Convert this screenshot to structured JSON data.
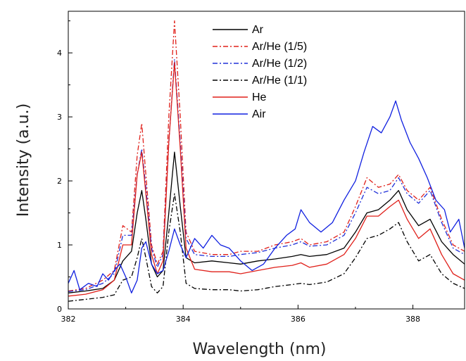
{
  "chart_data": {
    "type": "line",
    "title": "",
    "xlabel": "Wavelength (nm)",
    "ylabel": "Intensity (a.u.)",
    "xlim": [
      382,
      388.9
    ],
    "ylim": [
      0,
      4.65
    ],
    "xticks": [
      382,
      384,
      386,
      388
    ],
    "yticks": [
      0,
      1,
      2,
      3,
      4
    ],
    "x_tick_labels": [
      "382",
      "384",
      "386",
      "388"
    ],
    "y_tick_labels": [
      "0",
      "1",
      "2",
      "3",
      "4"
    ],
    "grid": false,
    "legend_position": "top-center",
    "series": [
      {
        "name": "Ar",
        "color": "#000000",
        "dash": "solid",
        "points": [
          [
            382.0,
            0.25
          ],
          [
            382.3,
            0.28
          ],
          [
            382.6,
            0.32
          ],
          [
            382.8,
            0.45
          ],
          [
            382.95,
            0.75
          ],
          [
            383.1,
            0.9
          ],
          [
            383.2,
            1.5
          ],
          [
            383.28,
            1.85
          ],
          [
            383.35,
            1.4
          ],
          [
            383.45,
            0.7
          ],
          [
            383.55,
            0.5
          ],
          [
            383.65,
            0.6
          ],
          [
            383.75,
            1.5
          ],
          [
            383.85,
            2.45
          ],
          [
            383.95,
            1.6
          ],
          [
            384.05,
            0.8
          ],
          [
            384.2,
            0.72
          ],
          [
            384.5,
            0.75
          ],
          [
            384.8,
            0.72
          ],
          [
            385.0,
            0.7
          ],
          [
            385.3,
            0.75
          ],
          [
            385.6,
            0.78
          ],
          [
            385.9,
            0.82
          ],
          [
            386.05,
            0.85
          ],
          [
            386.2,
            0.82
          ],
          [
            386.5,
            0.85
          ],
          [
            386.8,
            0.95
          ],
          [
            387.0,
            1.2
          ],
          [
            387.2,
            1.5
          ],
          [
            387.4,
            1.55
          ],
          [
            387.6,
            1.7
          ],
          [
            387.75,
            1.85
          ],
          [
            387.9,
            1.55
          ],
          [
            388.1,
            1.3
          ],
          [
            388.3,
            1.4
          ],
          [
            388.5,
            1.05
          ],
          [
            388.7,
            0.85
          ],
          [
            388.9,
            0.7
          ]
        ]
      },
      {
        "name": "Ar/He (1/5)",
        "color": "#e0201a",
        "dash": "dashdot",
        "points": [
          [
            382.0,
            0.28
          ],
          [
            382.3,
            0.32
          ],
          [
            382.6,
            0.45
          ],
          [
            382.8,
            0.6
          ],
          [
            382.95,
            1.3
          ],
          [
            383.1,
            1.2
          ],
          [
            383.2,
            2.4
          ],
          [
            383.28,
            2.9
          ],
          [
            383.35,
            2.1
          ],
          [
            383.45,
            1.0
          ],
          [
            383.55,
            0.7
          ],
          [
            383.65,
            0.9
          ],
          [
            383.75,
            3.0
          ],
          [
            383.85,
            4.5
          ],
          [
            383.95,
            3.0
          ],
          [
            384.05,
            1.2
          ],
          [
            384.2,
            0.9
          ],
          [
            384.5,
            0.85
          ],
          [
            384.8,
            0.85
          ],
          [
            385.0,
            0.9
          ],
          [
            385.3,
            0.9
          ],
          [
            385.6,
            1.0
          ],
          [
            385.9,
            1.05
          ],
          [
            386.05,
            1.1
          ],
          [
            386.2,
            1.0
          ],
          [
            386.5,
            1.05
          ],
          [
            386.8,
            1.2
          ],
          [
            387.0,
            1.6
          ],
          [
            387.2,
            2.05
          ],
          [
            387.4,
            1.9
          ],
          [
            387.6,
            1.95
          ],
          [
            387.75,
            2.1
          ],
          [
            387.9,
            1.85
          ],
          [
            388.1,
            1.7
          ],
          [
            388.3,
            1.9
          ],
          [
            388.5,
            1.4
          ],
          [
            388.7,
            1.0
          ],
          [
            388.9,
            0.9
          ]
        ]
      },
      {
        "name": "Ar/He (1/2)",
        "color": "#2030d8",
        "dash": "dashdot",
        "points": [
          [
            382.0,
            0.27
          ],
          [
            382.3,
            0.3
          ],
          [
            382.6,
            0.4
          ],
          [
            382.8,
            0.55
          ],
          [
            382.95,
            1.15
          ],
          [
            383.1,
            1.15
          ],
          [
            383.2,
            2.1
          ],
          [
            383.28,
            2.5
          ],
          [
            383.35,
            1.9
          ],
          [
            383.45,
            0.95
          ],
          [
            383.55,
            0.65
          ],
          [
            383.65,
            0.85
          ],
          [
            383.75,
            2.6
          ],
          [
            383.85,
            3.9
          ],
          [
            383.95,
            2.6
          ],
          [
            384.05,
            1.1
          ],
          [
            384.2,
            0.85
          ],
          [
            384.5,
            0.82
          ],
          [
            384.8,
            0.82
          ],
          [
            385.0,
            0.85
          ],
          [
            385.3,
            0.88
          ],
          [
            385.6,
            0.95
          ],
          [
            385.9,
            1.0
          ],
          [
            386.05,
            1.05
          ],
          [
            386.2,
            0.98
          ],
          [
            386.5,
            1.0
          ],
          [
            386.8,
            1.15
          ],
          [
            387.0,
            1.5
          ],
          [
            387.2,
            1.9
          ],
          [
            387.4,
            1.8
          ],
          [
            387.6,
            1.85
          ],
          [
            387.75,
            2.05
          ],
          [
            387.9,
            1.8
          ],
          [
            388.1,
            1.65
          ],
          [
            388.3,
            1.85
          ],
          [
            388.5,
            1.35
          ],
          [
            388.7,
            0.95
          ],
          [
            388.9,
            0.85
          ]
        ]
      },
      {
        "name": "Ar/He (1/1)",
        "color": "#000000",
        "dash": "dashdot",
        "points": [
          [
            382.0,
            0.12
          ],
          [
            382.3,
            0.15
          ],
          [
            382.6,
            0.18
          ],
          [
            382.8,
            0.22
          ],
          [
            382.95,
            0.45
          ],
          [
            383.1,
            0.5
          ],
          [
            383.2,
            0.8
          ],
          [
            383.28,
            1.1
          ],
          [
            383.35,
            0.8
          ],
          [
            383.45,
            0.35
          ],
          [
            383.55,
            0.25
          ],
          [
            383.65,
            0.35
          ],
          [
            383.75,
            1.2
          ],
          [
            383.85,
            1.8
          ],
          [
            383.95,
            1.2
          ],
          [
            384.05,
            0.4
          ],
          [
            384.2,
            0.32
          ],
          [
            384.5,
            0.3
          ],
          [
            384.8,
            0.3
          ],
          [
            385.0,
            0.28
          ],
          [
            385.3,
            0.3
          ],
          [
            385.6,
            0.35
          ],
          [
            385.9,
            0.38
          ],
          [
            386.05,
            0.4
          ],
          [
            386.2,
            0.38
          ],
          [
            386.5,
            0.42
          ],
          [
            386.8,
            0.55
          ],
          [
            387.0,
            0.8
          ],
          [
            387.2,
            1.1
          ],
          [
            387.4,
            1.15
          ],
          [
            387.6,
            1.25
          ],
          [
            387.75,
            1.35
          ],
          [
            387.9,
            1.05
          ],
          [
            388.1,
            0.75
          ],
          [
            388.3,
            0.85
          ],
          [
            388.5,
            0.55
          ],
          [
            388.7,
            0.4
          ],
          [
            388.9,
            0.32
          ]
        ]
      },
      {
        "name": "He",
        "color": "#e0201a",
        "dash": "solid",
        "points": [
          [
            382.0,
            0.2
          ],
          [
            382.3,
            0.23
          ],
          [
            382.6,
            0.3
          ],
          [
            382.8,
            0.45
          ],
          [
            382.95,
            1.0
          ],
          [
            383.1,
            1.0
          ],
          [
            383.2,
            2.1
          ],
          [
            383.28,
            2.45
          ],
          [
            383.35,
            1.8
          ],
          [
            383.45,
            0.85
          ],
          [
            383.55,
            0.55
          ],
          [
            383.65,
            0.75
          ],
          [
            383.75,
            2.6
          ],
          [
            383.85,
            3.85
          ],
          [
            383.95,
            2.5
          ],
          [
            384.05,
            0.95
          ],
          [
            384.2,
            0.62
          ],
          [
            384.5,
            0.58
          ],
          [
            384.8,
            0.58
          ],
          [
            385.0,
            0.55
          ],
          [
            385.3,
            0.6
          ],
          [
            385.6,
            0.65
          ],
          [
            385.9,
            0.68
          ],
          [
            386.05,
            0.72
          ],
          [
            386.2,
            0.65
          ],
          [
            386.5,
            0.7
          ],
          [
            386.8,
            0.85
          ],
          [
            387.0,
            1.1
          ],
          [
            387.2,
            1.45
          ],
          [
            387.4,
            1.45
          ],
          [
            387.6,
            1.6
          ],
          [
            387.75,
            1.7
          ],
          [
            387.9,
            1.4
          ],
          [
            388.1,
            1.1
          ],
          [
            388.3,
            1.25
          ],
          [
            388.5,
            0.85
          ],
          [
            388.7,
            0.55
          ],
          [
            388.9,
            0.45
          ]
        ]
      },
      {
        "name": "Air",
        "color": "#1020e0",
        "dash": "solid",
        "points": [
          [
            382.0,
            0.4
          ],
          [
            382.1,
            0.6
          ],
          [
            382.2,
            0.3
          ],
          [
            382.35,
            0.4
          ],
          [
            382.5,
            0.35
          ],
          [
            382.6,
            0.55
          ],
          [
            382.7,
            0.45
          ],
          [
            382.8,
            0.6
          ],
          [
            382.9,
            0.7
          ],
          [
            383.0,
            0.5
          ],
          [
            383.1,
            0.25
          ],
          [
            383.2,
            0.45
          ],
          [
            383.28,
            0.95
          ],
          [
            383.35,
            1.05
          ],
          [
            383.45,
            0.7
          ],
          [
            383.55,
            0.55
          ],
          [
            383.65,
            0.6
          ],
          [
            383.75,
            0.9
          ],
          [
            383.85,
            1.25
          ],
          [
            383.95,
            1.0
          ],
          [
            384.05,
            0.8
          ],
          [
            384.2,
            1.1
          ],
          [
            384.35,
            0.95
          ],
          [
            384.5,
            1.15
          ],
          [
            384.65,
            1.0
          ],
          [
            384.8,
            0.95
          ],
          [
            385.0,
            0.75
          ],
          [
            385.2,
            0.6
          ],
          [
            385.4,
            0.7
          ],
          [
            385.6,
            0.95
          ],
          [
            385.8,
            1.15
          ],
          [
            385.95,
            1.25
          ],
          [
            386.05,
            1.55
          ],
          [
            386.2,
            1.35
          ],
          [
            386.4,
            1.2
          ],
          [
            386.6,
            1.35
          ],
          [
            386.8,
            1.7
          ],
          [
            387.0,
            2.0
          ],
          [
            387.15,
            2.45
          ],
          [
            387.3,
            2.85
          ],
          [
            387.45,
            2.75
          ],
          [
            387.6,
            3.0
          ],
          [
            387.7,
            3.25
          ],
          [
            387.8,
            2.95
          ],
          [
            387.95,
            2.6
          ],
          [
            388.1,
            2.35
          ],
          [
            388.25,
            2.05
          ],
          [
            388.4,
            1.7
          ],
          [
            388.55,
            1.55
          ],
          [
            388.65,
            1.2
          ],
          [
            388.8,
            1.4
          ],
          [
            388.9,
            0.95
          ]
        ]
      }
    ]
  }
}
